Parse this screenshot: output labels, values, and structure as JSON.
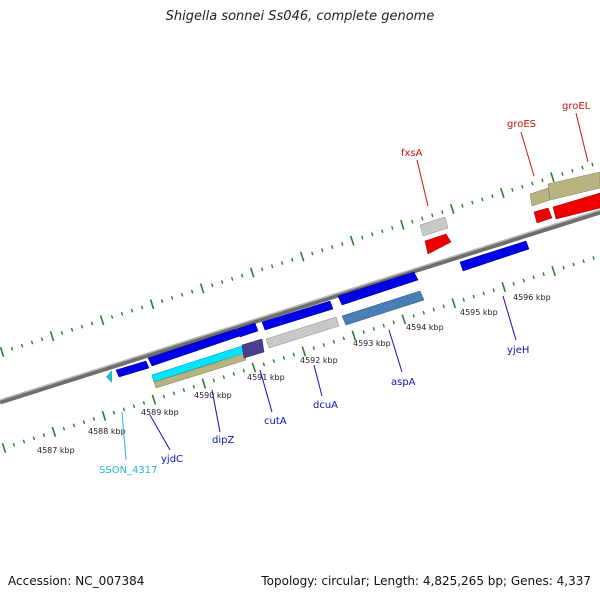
{
  "title": "Shigella sonnei Ss046, complete genome",
  "footer": {
    "accession": "Accession: NC_007384",
    "summary": "Topology: circular; Length: 4,825,265 bp; Genes: 4,337"
  },
  "colors": {
    "backbone": "#8a8a8a",
    "tick": "#2e7d32",
    "forward_gene": "#0000e6",
    "reverse_gene": "#0000e6",
    "cds_grey": "#c8c8c8",
    "cds_olive": "#b8b482",
    "cds_cyan": "#00e6ff",
    "cds_steel": "#4a7fb5",
    "cds_purple": "#4a3f8f",
    "rna_red": "#ee0000",
    "label_blue": "#1010c0",
    "label_red": "#cc1111",
    "label_cyan": "#22b8d8"
  },
  "scale_labels": [
    "4587 kbp",
    "4588 kbp",
    "4589 kbp",
    "4590 kbp",
    "4591 kbp",
    "4592 kbp",
    "4593 kbp",
    "4594 kbp",
    "4595 kbp",
    "4596 kbp"
  ],
  "genes": [
    {
      "name": "SSON_4317",
      "color": "cyan"
    },
    {
      "name": "yjdC",
      "color": "blue"
    },
    {
      "name": "dipZ",
      "color": "blue"
    },
    {
      "name": "cutA",
      "color": "blue"
    },
    {
      "name": "dcuA",
      "color": "blue"
    },
    {
      "name": "aspA",
      "color": "blue"
    },
    {
      "name": "yjeH",
      "color": "blue"
    },
    {
      "name": "fxsA",
      "color": "red"
    },
    {
      "name": "groES",
      "color": "red"
    },
    {
      "name": "groEL",
      "color": "red"
    }
  ]
}
